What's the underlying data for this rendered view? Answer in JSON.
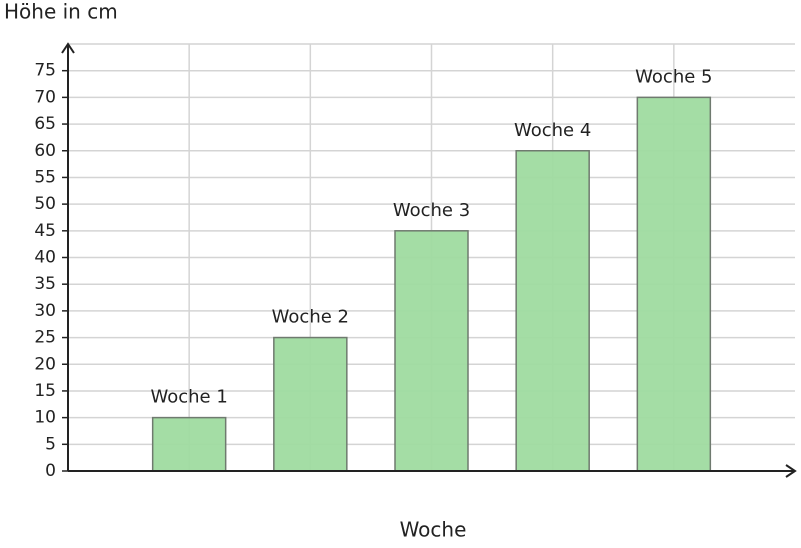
{
  "chart_data": {
    "type": "bar",
    "y_label": "Höhe in cm",
    "x_label": "Woche",
    "categories": [
      "Woche 1",
      "Woche 2",
      "Woche 3",
      "Woche 4",
      "Woche 5"
    ],
    "values": [
      10,
      25,
      45,
      60,
      70
    ],
    "color": "#9fdba0",
    "ylim": [
      0,
      80
    ],
    "yticks": [
      0,
      5,
      10,
      15,
      20,
      25,
      30,
      35,
      40,
      45,
      50,
      55,
      60,
      65,
      70,
      75
    ],
    "grid": true
  }
}
